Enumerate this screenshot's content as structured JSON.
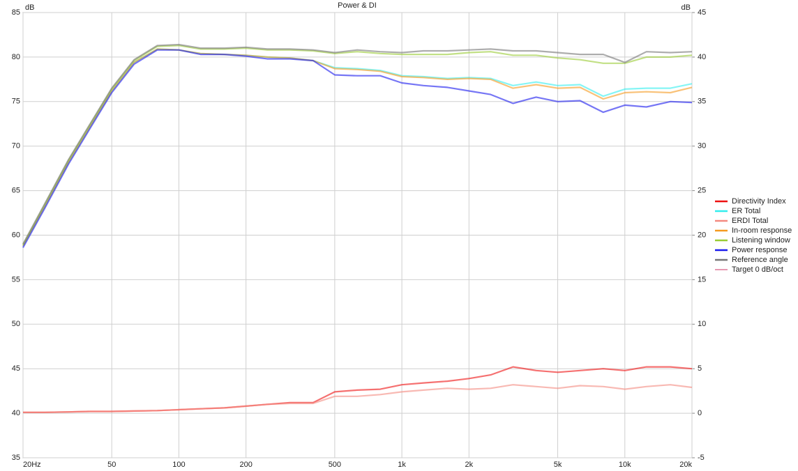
{
  "chart_data": {
    "type": "line",
    "title": "Power & DI",
    "y_label": "dB",
    "y2_label": "dB",
    "xscale": "log",
    "grid": true,
    "legend": "right",
    "x": [
      20,
      25,
      32,
      40,
      50,
      63,
      80,
      100,
      125,
      160,
      200,
      250,
      315,
      400,
      500,
      630,
      800,
      1000,
      1250,
      1600,
      2000,
      2500,
      3150,
      4000,
      5000,
      6300,
      8000,
      10000,
      12500,
      16000,
      20000
    ],
    "xlim": [
      20,
      20000
    ],
    "xticks": [
      {
        "value": 20,
        "label": "20Hz"
      },
      50,
      100,
      200,
      500,
      {
        "value": 1000,
        "label": "1k"
      },
      {
        "value": 2000,
        "label": "2k"
      },
      {
        "value": 5000,
        "label": "5k"
      },
      {
        "value": 10000,
        "label": "10k"
      },
      {
        "value": 20000,
        "label": "20k"
      }
    ],
    "ylim": [
      35,
      85
    ],
    "yticks": [
      35,
      40,
      45,
      50,
      55,
      60,
      65,
      70,
      75,
      80,
      85
    ],
    "y2lim": [
      -5,
      45
    ],
    "y2ticks": [
      -5,
      0,
      5,
      10,
      15,
      20,
      25,
      30,
      35,
      40,
      45
    ],
    "series": [
      {
        "name": "Directivity Index",
        "color": "#ee1111",
        "axis": "y2",
        "values": [
          0.1,
          0.1,
          0.15,
          0.2,
          0.2,
          0.25,
          0.3,
          0.4,
          0.5,
          0.6,
          0.8,
          1.0,
          1.2,
          1.2,
          2.4,
          2.6,
          2.7,
          3.2,
          3.4,
          3.6,
          3.9,
          4.3,
          5.2,
          4.8,
          4.6,
          4.8,
          5.0,
          4.8,
          5.2,
          5.2,
          5.0
        ]
      },
      {
        "name": "ER Total",
        "color": "#33eeee",
        "values": [
          58.8,
          63.2,
          68.2,
          72.2,
          76.2,
          79.4,
          80.9,
          80.8,
          80.4,
          80.3,
          80.2,
          80.0,
          79.9,
          79.6,
          78.8,
          78.7,
          78.5,
          77.9,
          77.8,
          77.6,
          77.7,
          77.6,
          76.8,
          77.2,
          76.8,
          76.9,
          75.6,
          76.4,
          76.5,
          76.5,
          77.0
        ]
      },
      {
        "name": "ERDI Total",
        "color": "#f48a80",
        "axis": "y2",
        "values": [
          0.1,
          0.1,
          0.15,
          0.2,
          0.2,
          0.25,
          0.3,
          0.4,
          0.5,
          0.6,
          0.8,
          1.0,
          1.1,
          1.1,
          1.9,
          1.9,
          2.1,
          2.4,
          2.6,
          2.8,
          2.7,
          2.8,
          3.2,
          3.0,
          2.8,
          3.1,
          3.0,
          2.7,
          3.0,
          3.2,
          2.9
        ]
      },
      {
        "name": "In-room response",
        "color": "#f59a20",
        "values": [
          58.8,
          63.2,
          68.2,
          72.2,
          76.2,
          79.4,
          80.9,
          80.8,
          80.4,
          80.3,
          80.2,
          80.0,
          79.9,
          79.6,
          78.7,
          78.6,
          78.4,
          77.8,
          77.7,
          77.5,
          77.6,
          77.5,
          76.5,
          76.9,
          76.5,
          76.6,
          75.3,
          76.0,
          76.1,
          76.0,
          76.6
        ]
      },
      {
        "name": "Listening window",
        "color": "#99cc33",
        "values": [
          58.9,
          63.4,
          68.4,
          72.4,
          76.4,
          79.6,
          81.2,
          81.3,
          80.9,
          80.9,
          81.0,
          80.8,
          80.8,
          80.7,
          80.4,
          80.6,
          80.4,
          80.3,
          80.3,
          80.3,
          80.5,
          80.6,
          80.2,
          80.2,
          79.9,
          79.7,
          79.3,
          79.3,
          80.0,
          80.0,
          80.2
        ]
      },
      {
        "name": "Power response",
        "color": "#1a1aee",
        "values": [
          58.6,
          63.0,
          68.0,
          72.0,
          76.0,
          79.2,
          80.8,
          80.8,
          80.3,
          80.3,
          80.1,
          79.8,
          79.8,
          79.6,
          78.0,
          77.9,
          77.9,
          77.1,
          76.8,
          76.6,
          76.2,
          75.8,
          74.8,
          75.5,
          75.0,
          75.1,
          73.8,
          74.6,
          74.4,
          75.0,
          74.9
        ]
      },
      {
        "name": "Reference angle",
        "color": "#777777",
        "values": [
          59.0,
          63.5,
          68.5,
          72.5,
          76.5,
          79.7,
          81.3,
          81.4,
          81.0,
          81.0,
          81.1,
          80.9,
          80.9,
          80.8,
          80.5,
          80.8,
          80.6,
          80.5,
          80.7,
          80.7,
          80.8,
          80.9,
          80.7,
          80.7,
          80.5,
          80.3,
          80.3,
          79.4,
          80.6,
          80.5,
          80.6
        ]
      },
      {
        "name": "Target 0 dB/oct",
        "color": "#cc3366",
        "values": [
          null,
          null,
          null,
          null,
          null,
          null,
          null,
          null,
          null,
          null,
          null,
          null,
          null,
          null,
          null,
          null,
          null,
          null,
          null,
          null,
          null,
          null,
          null,
          null,
          null,
          null,
          null,
          null,
          null,
          null,
          null
        ]
      }
    ]
  }
}
